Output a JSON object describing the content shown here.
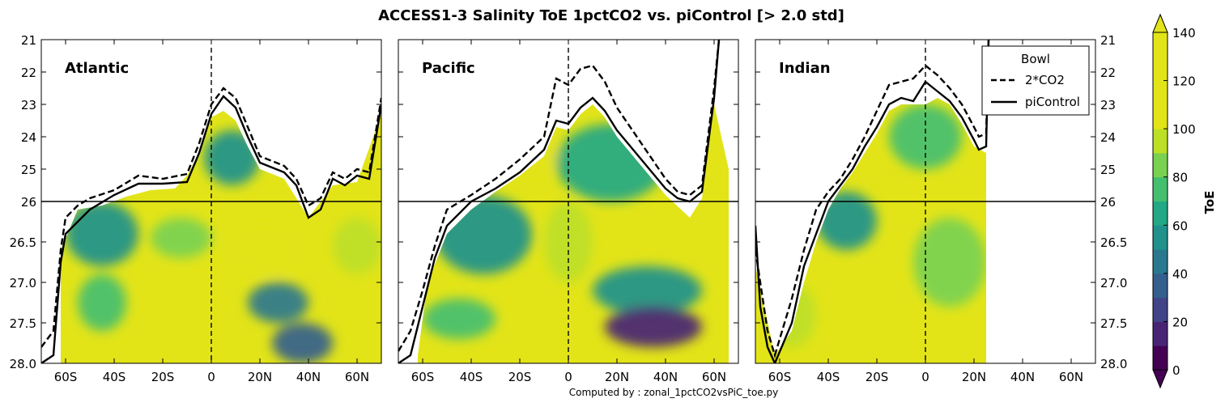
{
  "title": "ACCESS1-3 Salinity ToE 1pctCO2 vs. piControl [> 2.0 std]",
  "footer": "Computed by : zonal_1pctCO2vsPiC_toe.py",
  "colorbar": {
    "label": "ToE",
    "ticks": [
      "0",
      "20",
      "40",
      "60",
      "80",
      "100",
      "120",
      "140"
    ],
    "colors": [
      "#440154",
      "#482475",
      "#414487",
      "#355f8d",
      "#2a788e",
      "#21918c",
      "#22a884",
      "#44bf70",
      "#7ad151",
      "#bddf26",
      "#e2e418",
      "#e2e418",
      "#e2e418",
      "#e2e418"
    ],
    "range": [
      0,
      140
    ]
  },
  "legend": {
    "title": "Bowl",
    "items": [
      "2*CO2",
      "piControl"
    ]
  },
  "chart_data": {
    "type": "heatmap",
    "xlabel": "",
    "ylabel": "",
    "xlim": [
      -70,
      70
    ],
    "x_ticks": [
      "60S",
      "40S",
      "20S",
      "0",
      "20N",
      "40N",
      "60N"
    ],
    "y_ticks_left": [
      "21",
      "22",
      "23",
      "24",
      "25",
      "26",
      "26.5",
      "27.0",
      "27.5",
      "28.0"
    ],
    "y_ticks_right": [
      "21",
      "22",
      "23",
      "24",
      "25",
      "26",
      "26.5",
      "27.0",
      "27.5",
      "28.0"
    ],
    "y_split_density": 26,
    "panels": [
      {
        "name": "Atlantic",
        "piControl": [
          [
            -70,
            28.0
          ],
          [
            -65,
            27.9
          ],
          [
            -62,
            26.75
          ],
          [
            -60,
            26.4
          ],
          [
            -55,
            26.25
          ],
          [
            -50,
            26.1
          ],
          [
            -40,
            25.8
          ],
          [
            -30,
            25.45
          ],
          [
            -20,
            25.45
          ],
          [
            -10,
            25.4
          ],
          [
            -5,
            24.5
          ],
          [
            0,
            23.3
          ],
          [
            5,
            22.75
          ],
          [
            10,
            23.1
          ],
          [
            15,
            24.0
          ],
          [
            20,
            24.8
          ],
          [
            30,
            25.1
          ],
          [
            35,
            25.5
          ],
          [
            40,
            26.2
          ],
          [
            45,
            26.1
          ],
          [
            50,
            25.3
          ],
          [
            55,
            25.5
          ],
          [
            60,
            25.2
          ],
          [
            65,
            25.3
          ],
          [
            70,
            23.0
          ]
        ],
        "bowl_2xCO2": [
          [
            -70,
            27.8
          ],
          [
            -65,
            27.6
          ],
          [
            -62,
            26.6
          ],
          [
            -60,
            26.2
          ],
          [
            -55,
            26.05
          ],
          [
            -50,
            25.9
          ],
          [
            -40,
            25.65
          ],
          [
            -30,
            25.2
          ],
          [
            -20,
            25.3
          ],
          [
            -10,
            25.15
          ],
          [
            -5,
            24.2
          ],
          [
            0,
            23.0
          ],
          [
            5,
            22.5
          ],
          [
            10,
            22.8
          ],
          [
            15,
            23.7
          ],
          [
            20,
            24.6
          ],
          [
            30,
            24.9
          ],
          [
            35,
            25.3
          ],
          [
            40,
            26.05
          ],
          [
            45,
            25.9
          ],
          [
            50,
            25.1
          ],
          [
            55,
            25.3
          ],
          [
            60,
            25.0
          ],
          [
            65,
            25.1
          ],
          [
            70,
            22.8
          ]
        ],
        "fill_top": [
          [
            -62,
            26.6
          ],
          [
            -55,
            26.1
          ],
          [
            -45,
            26.05
          ],
          [
            -35,
            25.85
          ],
          [
            -25,
            25.65
          ],
          [
            -15,
            25.6
          ],
          [
            -10,
            25.2
          ],
          [
            -5,
            24.5
          ],
          [
            0,
            23.4
          ],
          [
            5,
            23.2
          ],
          [
            10,
            23.5
          ],
          [
            15,
            24.3
          ],
          [
            20,
            25.0
          ],
          [
            30,
            25.3
          ],
          [
            40,
            26.2
          ],
          [
            50,
            25.5
          ],
          [
            60,
            25.4
          ],
          [
            70,
            23.3
          ]
        ],
        "features": [
          {
            "x0": -60,
            "x1": -30,
            "y0": 26.0,
            "y1": 26.8,
            "toe": 50
          },
          {
            "x0": -25,
            "x1": 0,
            "y0": 26.2,
            "y1": 26.7,
            "toe": 80
          },
          {
            "x0": -3,
            "x1": 20,
            "y0": 23.8,
            "y1": 25.5,
            "toe": 50
          },
          {
            "x0": -55,
            "x1": -35,
            "y0": 26.9,
            "y1": 27.6,
            "toe": 70
          },
          {
            "x0": 15,
            "x1": 40,
            "y0": 27.0,
            "y1": 27.5,
            "toe": 40
          },
          {
            "x0": 25,
            "x1": 50,
            "y0": 27.5,
            "y1": 28.0,
            "toe": 30
          },
          {
            "x0": 5,
            "x1": 40,
            "y0": 26.3,
            "y1": 26.9,
            "toe": 100
          },
          {
            "x0": 50,
            "x1": 70,
            "y0": 26.2,
            "y1": 26.9,
            "toe": 90
          }
        ]
      },
      {
        "name": "Pacific",
        "piControl": [
          [
            -70,
            28.0
          ],
          [
            -65,
            27.9
          ],
          [
            -60,
            27.3
          ],
          [
            -55,
            26.7
          ],
          [
            -50,
            26.3
          ],
          [
            -40,
            26.0
          ],
          [
            -30,
            25.6
          ],
          [
            -20,
            25.1
          ],
          [
            -10,
            24.4
          ],
          [
            -5,
            23.5
          ],
          [
            0,
            23.6
          ],
          [
            5,
            23.1
          ],
          [
            10,
            22.8
          ],
          [
            15,
            23.2
          ],
          [
            20,
            23.8
          ],
          [
            30,
            24.7
          ],
          [
            40,
            25.6
          ],
          [
            45,
            25.9
          ],
          [
            50,
            26.0
          ],
          [
            55,
            25.7
          ],
          [
            60,
            22.8
          ],
          [
            62,
            21.0
          ]
        ],
        "bowl_2xCO2": [
          [
            -70,
            27.85
          ],
          [
            -65,
            27.6
          ],
          [
            -60,
            27.1
          ],
          [
            -55,
            26.55
          ],
          [
            -50,
            26.1
          ],
          [
            -40,
            25.8
          ],
          [
            -30,
            25.3
          ],
          [
            -20,
            24.7
          ],
          [
            -10,
            24.0
          ],
          [
            -5,
            22.2
          ],
          [
            0,
            22.4
          ],
          [
            5,
            21.9
          ],
          [
            10,
            21.8
          ],
          [
            15,
            22.3
          ],
          [
            20,
            23.1
          ],
          [
            30,
            24.2
          ],
          [
            40,
            25.3
          ],
          [
            45,
            25.7
          ],
          [
            50,
            25.8
          ],
          [
            55,
            25.5
          ],
          [
            60,
            22.5
          ],
          [
            62,
            21.0
          ]
        ],
        "fill_top": [
          [
            -62,
            27.9
          ],
          [
            -58,
            27.0
          ],
          [
            -50,
            26.4
          ],
          [
            -40,
            26.1
          ],
          [
            -30,
            25.7
          ],
          [
            -20,
            25.2
          ],
          [
            -10,
            24.6
          ],
          [
            -5,
            23.7
          ],
          [
            0,
            23.8
          ],
          [
            5,
            23.3
          ],
          [
            10,
            23.0
          ],
          [
            15,
            23.4
          ],
          [
            20,
            24.0
          ],
          [
            30,
            24.9
          ],
          [
            40,
            25.8
          ],
          [
            50,
            26.2
          ],
          [
            55,
            25.9
          ],
          [
            58,
            24.0
          ],
          [
            60,
            23.0
          ],
          [
            66,
            25.0
          ]
        ],
        "features": [
          {
            "x0": -55,
            "x1": -15,
            "y0": 25.8,
            "y1": 26.9,
            "toe": 50
          },
          {
            "x0": -5,
            "x1": 40,
            "y0": 23.6,
            "y1": 26.0,
            "toe": 60
          },
          {
            "x0": -20,
            "x1": -5,
            "y0": 24.0,
            "y1": 25.2,
            "toe": 110
          },
          {
            "x0": 10,
            "x1": 55,
            "y0": 26.8,
            "y1": 27.4,
            "toe": 50
          },
          {
            "x0": 15,
            "x1": 55,
            "y0": 27.3,
            "y1": 27.8,
            "toe": 15
          },
          {
            "x0": -60,
            "x1": -30,
            "y0": 27.2,
            "y1": 27.7,
            "toe": 70
          },
          {
            "x0": -10,
            "x1": 10,
            "y0": 26.0,
            "y1": 27.0,
            "toe": 90
          }
        ]
      },
      {
        "name": "Indian",
        "piControl": [
          [
            -70,
            26.3
          ],
          [
            -68,
            27.3
          ],
          [
            -65,
            27.8
          ],
          [
            -62,
            28.0
          ],
          [
            -55,
            27.5
          ],
          [
            -50,
            26.8
          ],
          [
            -45,
            26.4
          ],
          [
            -40,
            26.0
          ],
          [
            -35,
            25.5
          ],
          [
            -30,
            25.0
          ],
          [
            -25,
            24.3
          ],
          [
            -20,
            23.7
          ],
          [
            -15,
            23.0
          ],
          [
            -10,
            22.8
          ],
          [
            -5,
            22.9
          ],
          [
            0,
            22.3
          ],
          [
            5,
            22.6
          ],
          [
            10,
            22.9
          ],
          [
            15,
            23.4
          ],
          [
            20,
            24.1
          ],
          [
            22,
            24.4
          ],
          [
            25,
            24.3
          ],
          [
            26,
            21.0
          ]
        ],
        "bowl_2xCO2": [
          [
            -70,
            26.6
          ],
          [
            -68,
            27.0
          ],
          [
            -65,
            27.6
          ],
          [
            -62,
            27.9
          ],
          [
            -55,
            27.2
          ],
          [
            -50,
            26.6
          ],
          [
            -45,
            26.1
          ],
          [
            -40,
            25.7
          ],
          [
            -35,
            25.3
          ],
          [
            -30,
            24.7
          ],
          [
            -25,
            24.0
          ],
          [
            -20,
            23.2
          ],
          [
            -15,
            22.4
          ],
          [
            -10,
            22.3
          ],
          [
            -5,
            22.2
          ],
          [
            0,
            21.8
          ],
          [
            5,
            22.1
          ],
          [
            10,
            22.5
          ],
          [
            15,
            23.0
          ],
          [
            20,
            23.7
          ],
          [
            22,
            24.0
          ],
          [
            25,
            23.9
          ],
          [
            26,
            21.0
          ]
        ],
        "fill_top": [
          [
            -70,
            26.8
          ],
          [
            -62,
            27.9
          ],
          [
            -55,
            27.6
          ],
          [
            -50,
            27.0
          ],
          [
            -45,
            26.5
          ],
          [
            -40,
            26.1
          ],
          [
            -35,
            25.6
          ],
          [
            -30,
            25.1
          ],
          [
            -25,
            24.5
          ],
          [
            -20,
            23.9
          ],
          [
            -15,
            23.2
          ],
          [
            -10,
            23.0
          ],
          [
            -5,
            23.0
          ],
          [
            0,
            23.0
          ],
          [
            5,
            22.8
          ],
          [
            10,
            23.0
          ],
          [
            15,
            23.6
          ],
          [
            20,
            24.3
          ],
          [
            25,
            24.5
          ]
        ],
        "features": [
          {
            "x0": -45,
            "x1": -20,
            "y0": 25.7,
            "y1": 26.6,
            "toe": 50
          },
          {
            "x0": -15,
            "x1": 15,
            "y0": 23.0,
            "y1": 25.0,
            "toe": 70
          },
          {
            "x0": -5,
            "x1": 25,
            "y0": 26.2,
            "y1": 27.3,
            "toe": 80
          },
          {
            "x0": -65,
            "x1": -45,
            "y0": 27.0,
            "y1": 27.8,
            "toe": 90
          }
        ]
      }
    ]
  }
}
